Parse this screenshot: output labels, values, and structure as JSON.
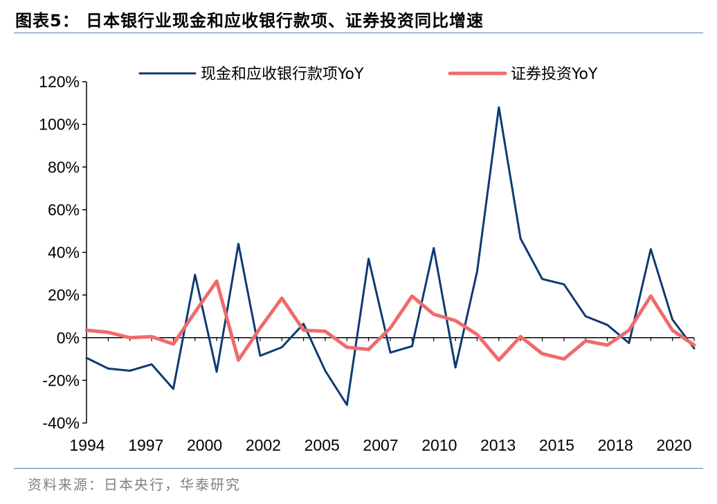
{
  "title": "图表5： 日本银行业现金和应收银行款项、证券投资同比增速",
  "source": "资料来源：日本央行，华泰研究",
  "chart_data": {
    "type": "line",
    "x": [
      1994,
      1995,
      1996,
      1997,
      1998,
      1999,
      2000,
      2001,
      2002,
      2003,
      2004,
      2005,
      2006,
      2007,
      2008,
      2009,
      2010,
      2011,
      2012,
      2013,
      2014,
      2015,
      2016,
      2017,
      2018,
      2019,
      2020,
      2021,
      2022
    ],
    "x_tick_labels": [
      "1994",
      "1997",
      "2000",
      "2002",
      "2005",
      "2007",
      "2010",
      "2013",
      "2015",
      "2018",
      "2020"
    ],
    "y_tick_labels": [
      "120%",
      "100%",
      "80%",
      "60%",
      "40%",
      "20%",
      "0%",
      "-20%",
      "-40%"
    ],
    "ylim": [
      -40,
      120
    ],
    "y_unit": "%",
    "legend_position": "top",
    "series": [
      {
        "name": "现金和应收银行款项YoY",
        "color": "#0d3a73",
        "values": [
          -9.5,
          -14.5,
          -15.5,
          -12.5,
          -24,
          29.5,
          -16,
          44,
          -8.5,
          -4.5,
          6.5,
          -15.5,
          -31.5,
          37,
          -7,
          -4,
          42,
          -14,
          31,
          108,
          46.5,
          27.5,
          25,
          10,
          6,
          -2.5,
          41.5,
          8.5,
          -5
        ]
      },
      {
        "name": "证券投资YoY",
        "color": "#ef6b6b",
        "values": [
          3.5,
          2.5,
          0,
          0.5,
          -3,
          12,
          26.5,
          -10.5,
          4.5,
          18.5,
          3.5,
          3,
          -4.5,
          -5.5,
          4.5,
          19.5,
          11,
          8,
          1.5,
          -10.5,
          0.5,
          -7.5,
          -10,
          -1.5,
          -3.5,
          3.5,
          19.5,
          3.5,
          -3.5
        ]
      }
    ]
  }
}
